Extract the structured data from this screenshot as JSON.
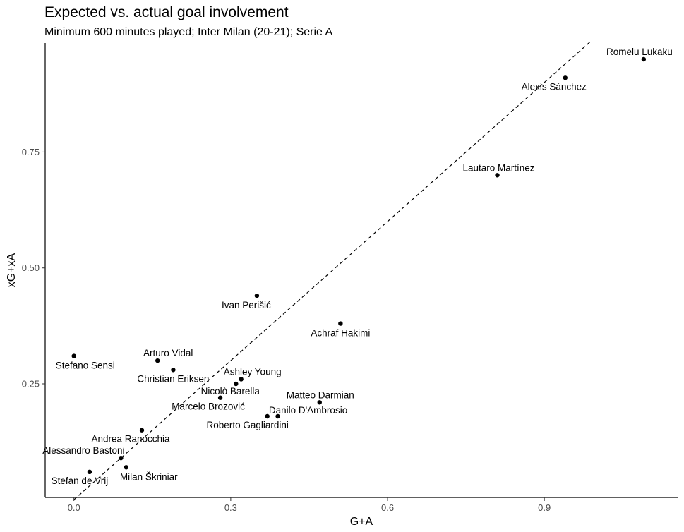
{
  "chart_data": {
    "type": "scatter",
    "title": "Expected vs. actual goal involvement",
    "subtitle": "Minimum 600 minutes played; Inter Milan (20-21); Serie A",
    "xlabel": "G+A",
    "ylabel": "xG+xA",
    "xlim": [
      -0.055,
      1.155
    ],
    "ylim": [
      0.005,
      0.985
    ],
    "x_ticks": [
      0.0,
      0.3,
      0.6,
      0.9
    ],
    "x_tick_labels": [
      "0.0",
      "0.3",
      "0.6",
      "0.9"
    ],
    "y_ticks": [
      0.25,
      0.5,
      0.75
    ],
    "y_tick_labels": [
      "0.25",
      "0.50",
      "0.75"
    ],
    "reference_line": {
      "style": "dashed",
      "x": [
        0.0,
        0.99
      ],
      "y": [
        0.0,
        0.99
      ]
    },
    "grid": false,
    "points": [
      {
        "name": "Romelu Lukaku",
        "x": 1.09,
        "y": 0.95
      },
      {
        "name": "Alexis Sánchez",
        "x": 0.94,
        "y": 0.91
      },
      {
        "name": "Lautaro Martínez",
        "x": 0.81,
        "y": 0.7
      },
      {
        "name": "Ivan Perišić",
        "x": 0.35,
        "y": 0.44
      },
      {
        "name": "Achraf Hakimi",
        "x": 0.51,
        "y": 0.38
      },
      {
        "name": "Stefano Sensi",
        "x": 0.0,
        "y": 0.31
      },
      {
        "name": "Arturo Vidal",
        "x": 0.16,
        "y": 0.3
      },
      {
        "name": "Christian Eriksen",
        "x": 0.19,
        "y": 0.28
      },
      {
        "name": "Ashley Young",
        "x": 0.32,
        "y": 0.26
      },
      {
        "name": "Nicolò Barella",
        "x": 0.31,
        "y": 0.25
      },
      {
        "name": "Marcelo Brozović",
        "x": 0.28,
        "y": 0.22
      },
      {
        "name": "Matteo Darmian",
        "x": 0.47,
        "y": 0.21
      },
      {
        "name": "Danilo D'Ambrosio",
        "x": 0.39,
        "y": 0.18
      },
      {
        "name": "Roberto Gagliardini",
        "x": 0.37,
        "y": 0.18
      },
      {
        "name": "Andrea Ranocchia",
        "x": 0.13,
        "y": 0.15
      },
      {
        "name": "Alessandro Bastoni",
        "x": 0.09,
        "y": 0.09
      },
      {
        "name": "Milan Škriniar",
        "x": 0.1,
        "y": 0.07
      },
      {
        "name": "Stefan de Vrij",
        "x": 0.03,
        "y": 0.06
      }
    ]
  }
}
